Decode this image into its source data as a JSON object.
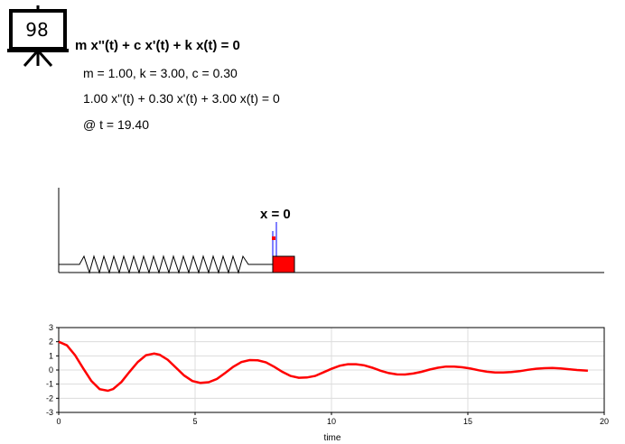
{
  "frame_number": "98",
  "equation_title": "m x''(t) + c x'(t) + k x(t) = 0",
  "params_line": "m = 1.00, k = 3.00, c = 0.30",
  "numeric_equation": "1.00 x''(t) + 0.30 x'(t) + 3.00 x(t) = 0",
  "time_line": "@ t = 19.40",
  "equilibrium_label": "x = 0",
  "colors": {
    "mass": "#ff0000",
    "curve": "#ff0000",
    "marker": "#0000ff",
    "grid": "#dcdcdc"
  },
  "chart_data": {
    "type": "line",
    "xlabel": "time",
    "ylabel": "",
    "xlim": [
      0,
      20
    ],
    "ylim": [
      -3,
      3
    ],
    "xticks": [
      0,
      5,
      10,
      15,
      20
    ],
    "yticks": [
      3,
      2,
      1,
      0,
      -1,
      -2,
      -3
    ],
    "grid": true,
    "series": [
      {
        "x": [
          0,
          0.3,
          0.6,
          0.9,
          1.2,
          1.5,
          1.8,
          2.0,
          2.3,
          2.6,
          2.9,
          3.2,
          3.5,
          3.7,
          4.0,
          4.3,
          4.6,
          4.9,
          5.2,
          5.5,
          5.8,
          6.1,
          6.4,
          6.7,
          7.0,
          7.3,
          7.6,
          7.9,
          8.2,
          8.5,
          8.8,
          9.1,
          9.4,
          9.7,
          10.0,
          10.3,
          10.6,
          10.9,
          11.2,
          11.5,
          11.8,
          12.1,
          12.4,
          12.7,
          13.0,
          13.3,
          13.6,
          13.9,
          14.2,
          14.5,
          14.8,
          15.1,
          15.4,
          15.7,
          16.0,
          16.3,
          16.6,
          16.9,
          17.2,
          17.5,
          17.8,
          18.1,
          18.4,
          18.7,
          19.0,
          19.4
        ],
        "y": [
          2.0,
          1.74,
          1.05,
          0.11,
          -0.78,
          -1.35,
          -1.47,
          -1.34,
          -0.84,
          -0.12,
          0.57,
          1.04,
          1.16,
          1.08,
          0.72,
          0.16,
          -0.39,
          -0.78,
          -0.91,
          -0.86,
          -0.63,
          -0.22,
          0.23,
          0.56,
          0.7,
          0.68,
          0.54,
          0.23,
          -0.13,
          -0.42,
          -0.55,
          -0.53,
          -0.42,
          -0.17,
          0.08,
          0.3,
          0.41,
          0.41,
          0.33,
          0.16,
          -0.05,
          -0.22,
          -0.31,
          -0.32,
          -0.25,
          -0.13,
          0.03,
          0.16,
          0.24,
          0.24,
          0.19,
          0.1,
          -0.02,
          -0.12,
          -0.18,
          -0.18,
          -0.15,
          -0.08,
          0.01,
          0.09,
          0.13,
          0.14,
          0.11,
          0.06,
          0.0,
          -0.05
        ]
      }
    ]
  }
}
